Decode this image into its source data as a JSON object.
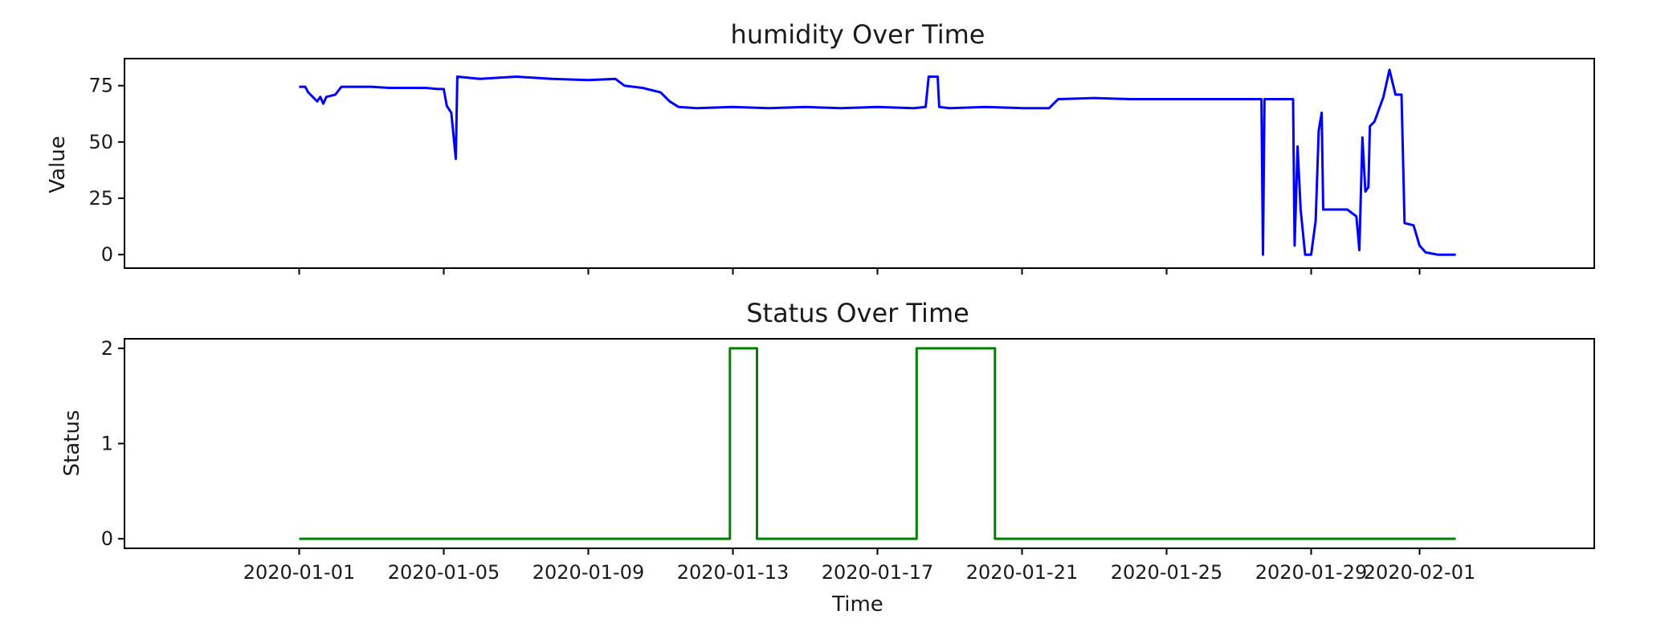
{
  "chart_data": [
    {
      "type": "line",
      "title": "humidity Over Time",
      "xlabel": "",
      "ylabel": "Value",
      "xlim": [
        "2019-12-27T04:00",
        "2020-02-05T20:00"
      ],
      "ylim": [
        -6,
        87
      ],
      "yticks": [
        0,
        25,
        50,
        75
      ],
      "color": "#0000ff",
      "series": [
        {
          "points": [
            [
              "2020-01-01T00:00",
              74.5
            ],
            [
              "2020-01-01T04:00",
              74.5
            ],
            [
              "2020-01-01T06:00",
              72
            ],
            [
              "2020-01-01T09:00",
              70
            ],
            [
              "2020-01-01T12:00",
              68
            ],
            [
              "2020-01-01T14:00",
              70
            ],
            [
              "2020-01-01T16:00",
              67
            ],
            [
              "2020-01-01T18:00",
              70
            ],
            [
              "2020-01-02T00:00",
              71
            ],
            [
              "2020-01-02T04:00",
              74.5
            ],
            [
              "2020-01-03T00:00",
              74.5
            ],
            [
              "2020-01-03T12:00",
              74
            ],
            [
              "2020-01-04T00:00",
              74
            ],
            [
              "2020-01-04T12:00",
              74
            ],
            [
              "2020-01-04T20:00",
              73.5
            ],
            [
              "2020-01-05T00:00",
              73.5
            ],
            [
              "2020-01-05T02:00",
              66
            ],
            [
              "2020-01-05T05:00",
              63
            ],
            [
              "2020-01-05T08:00",
              42.5
            ],
            [
              "2020-01-05T09:00",
              79
            ],
            [
              "2020-01-06T00:00",
              78
            ],
            [
              "2020-01-07T00:00",
              79
            ],
            [
              "2020-01-08T00:00",
              78
            ],
            [
              "2020-01-09T00:00",
              77.5
            ],
            [
              "2020-01-09T18:00",
              78
            ],
            [
              "2020-01-10T00:00",
              75
            ],
            [
              "2020-01-10T12:00",
              74
            ],
            [
              "2020-01-11T00:00",
              72
            ],
            [
              "2020-01-11T06:00",
              68
            ],
            [
              "2020-01-11T12:00",
              65.5
            ],
            [
              "2020-01-12T00:00",
              65
            ],
            [
              "2020-01-13T00:00",
              65.5
            ],
            [
              "2020-01-14T00:00",
              65
            ],
            [
              "2020-01-15T00:00",
              65.5
            ],
            [
              "2020-01-16T00:00",
              65
            ],
            [
              "2020-01-17T00:00",
              65.5
            ],
            [
              "2020-01-18T00:00",
              65
            ],
            [
              "2020-01-18T08:00",
              65.5
            ],
            [
              "2020-01-18T10:00",
              79
            ],
            [
              "2020-01-18T16:00",
              79
            ],
            [
              "2020-01-18T17:00",
              65.5
            ],
            [
              "2020-01-19T00:00",
              65
            ],
            [
              "2020-01-20T00:00",
              65.5
            ],
            [
              "2020-01-21T00:00",
              65
            ],
            [
              "2020-01-21T18:00",
              65
            ],
            [
              "2020-01-22T00:00",
              69
            ],
            [
              "2020-01-23T00:00",
              69.5
            ],
            [
              "2020-01-24T00:00",
              69
            ],
            [
              "2020-01-25T00:00",
              69
            ],
            [
              "2020-01-26T00:00",
              69
            ],
            [
              "2020-01-27T00:00",
              69
            ],
            [
              "2020-01-27T15:00",
              69
            ],
            [
              "2020-01-27T16:00",
              0
            ],
            [
              "2020-01-27T17:00",
              69
            ],
            [
              "2020-01-28T00:00",
              69
            ],
            [
              "2020-01-28T12:00",
              69
            ],
            [
              "2020-01-28T13:00",
              4
            ],
            [
              "2020-01-28T15:00",
              48
            ],
            [
              "2020-01-28T17:00",
              20
            ],
            [
              "2020-01-28T20:00",
              0
            ],
            [
              "2020-01-29T00:00",
              0
            ],
            [
              "2020-01-29T03:00",
              15
            ],
            [
              "2020-01-29T05:00",
              55
            ],
            [
              "2020-01-29T07:00",
              63
            ],
            [
              "2020-01-29T08:00",
              20
            ],
            [
              "2020-01-30T00:00",
              20
            ],
            [
              "2020-01-30T06:00",
              17
            ],
            [
              "2020-01-30T08:00",
              2
            ],
            [
              "2020-01-30T10:00",
              52
            ],
            [
              "2020-01-30T12:00",
              28
            ],
            [
              "2020-01-30T14:00",
              30
            ],
            [
              "2020-01-30T15:00",
              57
            ],
            [
              "2020-01-30T18:00",
              59
            ],
            [
              "2020-01-31T00:00",
              70
            ],
            [
              "2020-01-31T04:00",
              82
            ],
            [
              "2020-01-31T08:00",
              71
            ],
            [
              "2020-01-31T12:00",
              71
            ],
            [
              "2020-01-31T14:00",
              14
            ],
            [
              "2020-01-31T20:00",
              13
            ],
            [
              "2020-02-01T00:00",
              4
            ],
            [
              "2020-02-01T04:00",
              1
            ],
            [
              "2020-02-01T12:00",
              0
            ],
            [
              "2020-02-02T00:00",
              0
            ]
          ]
        }
      ]
    },
    {
      "type": "line",
      "title": "Status Over Time",
      "xlabel": "Time",
      "ylabel": "Status",
      "xlim": [
        "2019-12-27T04:00",
        "2020-02-05T20:00"
      ],
      "ylim": [
        -0.1,
        2.1
      ],
      "yticks": [
        0,
        1,
        2
      ],
      "color": "#008000",
      "xticks": [
        "2020-01-01",
        "2020-01-05",
        "2020-01-09",
        "2020-01-13",
        "2020-01-17",
        "2020-01-21",
        "2020-01-25",
        "2020-01-29",
        "2020-02-01"
      ],
      "xtick_labels": [
        "2020-01-01",
        "2020-01-05",
        "2020-01-09",
        "2020-01-13",
        "2020-01-17",
        "2020-01-21",
        "2020-01-25",
        "2020-01-29",
        "2020-02-01"
      ],
      "series": [
        {
          "points": [
            [
              "2020-01-01T00:00",
              0
            ],
            [
              "2020-01-12T22:00",
              0
            ],
            [
              "2020-01-12T22:00",
              2
            ],
            [
              "2020-01-13T16:00",
              2
            ],
            [
              "2020-01-13T16:00",
              0
            ],
            [
              "2020-01-18T02:00",
              0
            ],
            [
              "2020-01-18T02:00",
              2
            ],
            [
              "2020-01-20T06:00",
              2
            ],
            [
              "2020-01-20T06:00",
              0
            ],
            [
              "2020-02-02T00:00",
              0
            ]
          ]
        }
      ]
    }
  ]
}
